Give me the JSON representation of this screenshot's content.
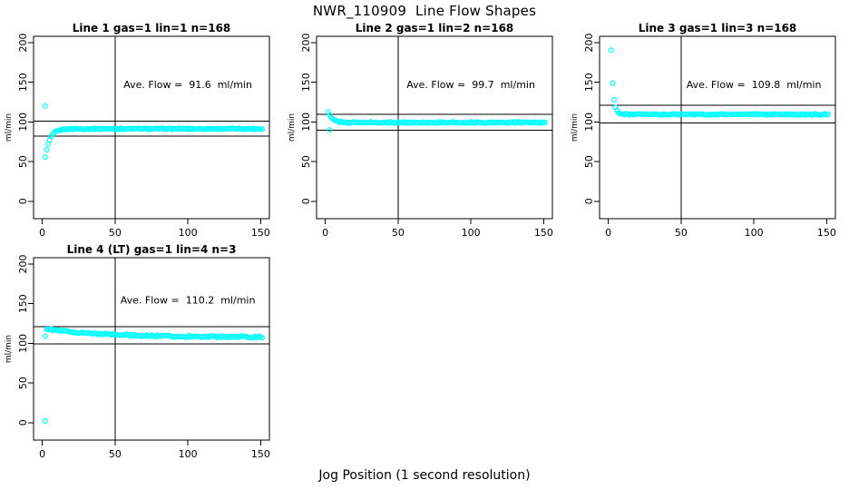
{
  "page": {
    "title": "NWR_110909  Line Flow Shapes",
    "xlabel": "Jog Position (1 second resolution)"
  },
  "chart_data": {
    "type": "scatter",
    "title": "NWR_110909  Line Flow Shapes",
    "xlabel": "Jog Position (1 second resolution)",
    "ylabel": "ml/min",
    "x_ticks": [
      0,
      50,
      100,
      150
    ],
    "y_ticks": [
      0,
      50,
      100,
      150,
      200
    ],
    "xlim": [
      -6,
      156
    ],
    "ylim": [
      -22,
      208
    ],
    "grid": false,
    "legend": "none",
    "marker": {
      "shape": "open-circle",
      "color": "#00FFFF",
      "radius": 2.4
    },
    "ref_line_color": "#000000",
    "panels": [
      {
        "id": "line-1",
        "title": "Line 1 gas=1 lin=1 n=168",
        "ave_flow": 91.6,
        "annotation": "Ave. Flow =  91.6  ml/min",
        "annotation_xy": [
          100,
          143
        ],
        "n": 168,
        "vline_x": 50,
        "hlines": [
          100.8,
          82.4
        ],
        "series": {
          "x_start": 2,
          "x_end": 151,
          "y_start": 55,
          "plateau": 91.3,
          "tau": 3.2,
          "noise": 0.8,
          "seed": 1
        },
        "outliers": [
          [
            2,
            120
          ]
        ]
      },
      {
        "id": "line-2",
        "title": "Line 2 gas=1 lin=2 n=168",
        "ave_flow": 99.7,
        "annotation": "Ave. Flow =  99.7  ml/min",
        "annotation_xy": [
          100,
          143
        ],
        "n": 168,
        "vline_x": 50,
        "hlines": [
          109.7,
          89.7
        ],
        "series": {
          "x_start": 2,
          "x_end": 151,
          "y_start": 112,
          "plateau": 99.3,
          "tau": 2.8,
          "noise": 0.8,
          "seed": 2
        },
        "outliers": [
          [
            3,
            90
          ]
        ]
      },
      {
        "id": "line-3",
        "title": "Line 3 gas=1 lin=3 n=168",
        "ave_flow": 109.8,
        "annotation": "Ave. Flow =  109.8  ml/min",
        "annotation_xy": [
          100,
          143
        ],
        "n": 168,
        "vline_x": 50,
        "hlines": [
          120.8,
          98.8
        ],
        "series": {
          "x_start": 2,
          "x_end": 151,
          "y_start": 190,
          "plateau": 109.5,
          "tau": 1.4,
          "noise": 0.8,
          "seed": 3
        },
        "outliers": []
      },
      {
        "id": "line-4",
        "title": "Line 4 (LT) gas=1 lin=4 n=3",
        "ave_flow": 110.2,
        "annotation": "Ave. Flow =  110.2  ml/min",
        "annotation_xy": [
          100,
          150
        ],
        "n": 3,
        "vline_x": 50,
        "hlines": [
          121.2,
          99.2
        ],
        "series": {
          "x_start": 3,
          "x_end": 151,
          "y_start": 118,
          "plateau": 107.8,
          "tau": 40,
          "noise": 1.1,
          "seed": 4
        },
        "outliers": [
          [
            2,
            2
          ],
          [
            2,
            109
          ]
        ]
      }
    ]
  }
}
